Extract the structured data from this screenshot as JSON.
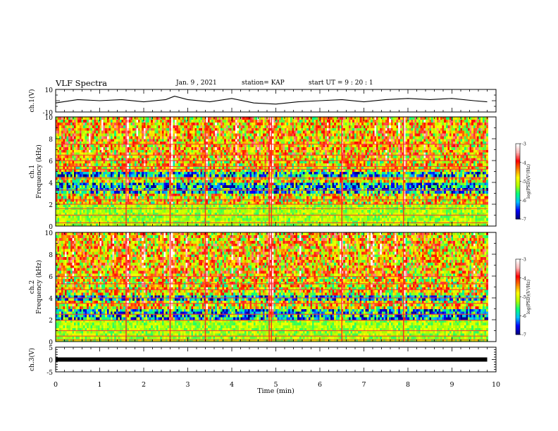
{
  "header": {
    "title": "VLF Spectra",
    "date": "Jan. 9 , 2021",
    "station": "station= KAP",
    "start": "start UT =  9 : 20 : 1"
  },
  "chart_data": [
    {
      "type": "line",
      "title": "VLF Spectra",
      "ylabel": "ch.1(V)",
      "xlim": [
        0,
        10
      ],
      "ylim": [
        -10,
        10
      ],
      "yticks": [
        "10",
        "-10"
      ],
      "series": [
        {
          "x": [
            0,
            0.5,
            1,
            1.5,
            2,
            2.5,
            2.7,
            3,
            3.5,
            4,
            4.5,
            5,
            5.5,
            6,
            6.5,
            7,
            7.5,
            8,
            8.5,
            9,
            9.5,
            9.8
          ],
          "values": [
            -2,
            1,
            0,
            1,
            -1,
            1,
            4,
            1,
            -1,
            2,
            -2,
            -3,
            -1,
            0,
            1,
            -1,
            1,
            2,
            1,
            2,
            0,
            -1
          ]
        }
      ],
      "grid": false
    },
    {
      "type": "heatmap",
      "ylabel": "Frequency (kHz)",
      "panel_label": "ch.1",
      "xlim": [
        0,
        10
      ],
      "ylim": [
        0,
        10
      ],
      "yticks": [
        "0",
        "2",
        "4",
        "6",
        "8",
        "10"
      ],
      "colorbar": {
        "label": "log(PSD)(V²/Hz)",
        "range": [
          -7,
          -3
        ],
        "ticks": [
          "-3",
          "-4",
          "-5",
          "-6",
          "-7"
        ],
        "colors": [
          "#000080",
          "#0000ff",
          "#00bfff",
          "#00ff80",
          "#b0ff00",
          "#ffff00",
          "#ff8000",
          "#ff0000",
          "#ffb0b0",
          "#ffffff"
        ]
      },
      "line_frequencies_khz": [
        0.3,
        1.0,
        1.6,
        2.0,
        2.4,
        3.3,
        4.4,
        5.2,
        5.45,
        6.0,
        6.5,
        7.5
      ],
      "quiet_bands_khz": [
        [
          2.9,
          4.1
        ],
        [
          4.5,
          5.0
        ]
      ],
      "bursts_min": [
        1.6,
        2.6,
        3.4,
        4.85,
        4.9,
        6.5,
        7.9
      ]
    },
    {
      "type": "heatmap",
      "ylabel": "Frequency (kHz)",
      "panel_label": "ch.2",
      "xlim": [
        0,
        10
      ],
      "ylim": [
        0,
        10
      ],
      "yticks": [
        "0",
        "2",
        "4",
        "6",
        "8",
        "10"
      ],
      "colorbar": {
        "label": "log(PSD)(V²/Hz)",
        "range": [
          -7,
          -3
        ],
        "ticks": [
          "-3",
          "-4",
          "-5",
          "-6",
          "-7"
        ],
        "colors": [
          "#000080",
          "#0000ff",
          "#00bfff",
          "#00ff80",
          "#b0ff00",
          "#ffff00",
          "#ff8000",
          "#ff0000",
          "#ffb0b0",
          "#ffffff"
        ]
      },
      "line_frequencies_khz": [
        0.15,
        0.5,
        1.0,
        1.95,
        2.5,
        3.5,
        4.0,
        4.75,
        5.3,
        5.95
      ],
      "quiet_bands_khz": [
        [
          2.1,
          3.0
        ],
        [
          3.7,
          4.2
        ]
      ],
      "bursts_min": [
        1.6,
        2.6,
        3.4,
        4.85,
        4.9,
        6.5,
        7.9
      ]
    },
    {
      "type": "line",
      "ylabel": "ch.3(V)",
      "xlabel": "Time (min)",
      "xlim": [
        0,
        10
      ],
      "ylim": [
        -5,
        5
      ],
      "yticks": [
        "5",
        "0",
        "-5"
      ],
      "xticks": [
        "0",
        "1",
        "2",
        "3",
        "4",
        "5",
        "6",
        "7",
        "8",
        "9",
        "10"
      ],
      "series": [
        {
          "x": [
            0,
            9.8
          ],
          "values": [
            0,
            0
          ]
        }
      ]
    }
  ]
}
